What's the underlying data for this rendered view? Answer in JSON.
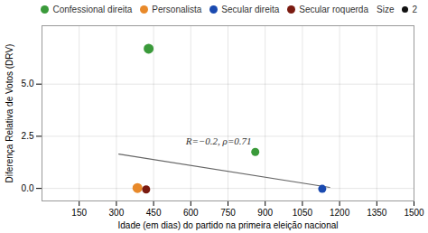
{
  "chart_data": {
    "type": "scatter",
    "xlabel": "Idade (em dias) do partido na primeira eleição nacional",
    "ylabel": "Diferença Relativa de Votos (DRV)",
    "xlim": [
      0,
      1500
    ],
    "ylim": [
      -0.6,
      7.8
    ],
    "xticks": [
      150,
      300,
      450,
      600,
      750,
      900,
      1050,
      1200,
      1350,
      1500
    ],
    "yticks": [
      {
        "value": 0,
        "label": "0.0"
      },
      2.5,
      {
        "value": 5,
        "label": "5.0"
      }
    ],
    "grid": true,
    "legend": "upper right",
    "series": [
      {
        "name": "Confessional direita",
        "color": "#3a9a3a",
        "x": [
          430,
          860
        ],
        "y": [
          6.7,
          1.75
        ],
        "sizes": [
          60,
          40
        ]
      },
      {
        "name": "Personalista",
        "color": "#e8892a",
        "x": [
          385
        ],
        "y": [
          0.02
        ],
        "sizes": [
          60
        ]
      },
      {
        "name": "Secular direita",
        "color": "#1a4ab0",
        "x": [
          1130
        ],
        "y": [
          -0.02
        ],
        "sizes": [
          40
        ]
      },
      {
        "name": "Secular roquerda",
        "color": "#7a1a10",
        "x": [
          420
        ],
        "y": [
          -0.05
        ],
        "sizes": [
          40
        ]
      }
    ],
    "regression_line": {
      "x": [
        310,
        1160
      ],
      "y": [
        1.65,
        0.05
      ],
      "color": "#666666"
    },
    "annotations": [
      {
        "text": "R=−0.2, ρ=0.71",
        "x": 580,
        "y": 2.1
      }
    ],
    "size_legend": {
      "title": "Size",
      "label": "2",
      "color": "#111111"
    }
  }
}
